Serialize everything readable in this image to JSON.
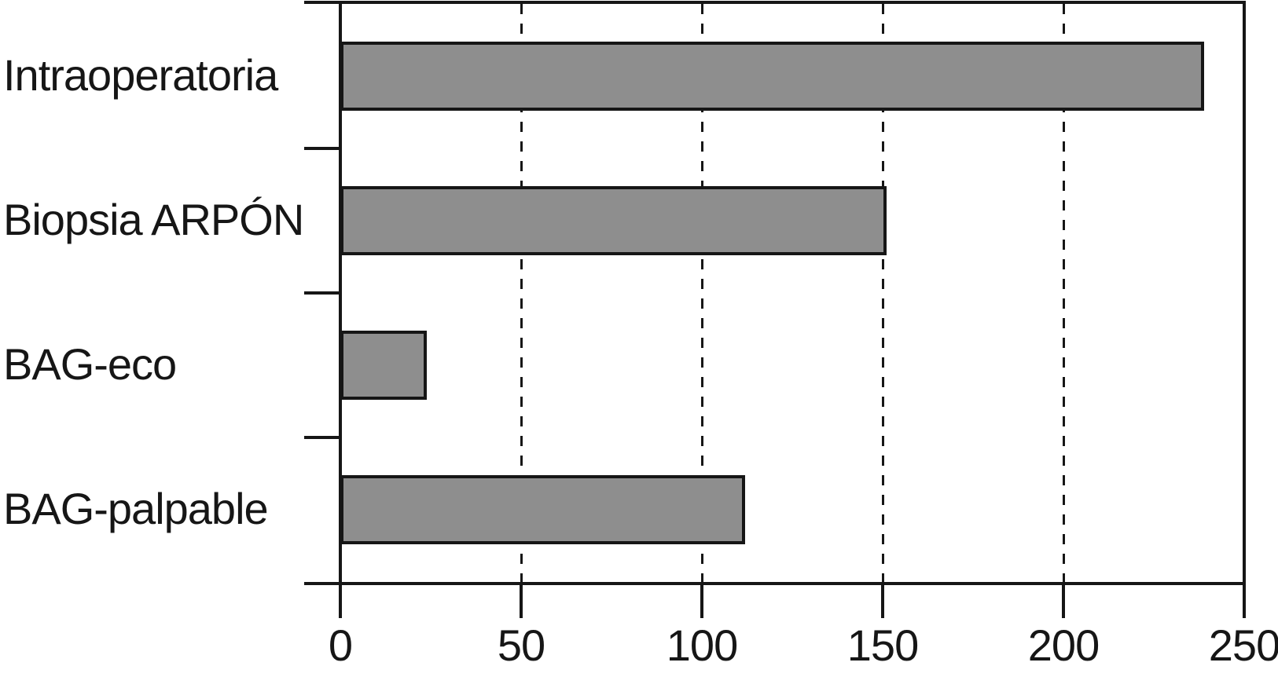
{
  "chart_data": {
    "type": "bar",
    "orientation": "horizontal",
    "title": "",
    "xlabel": "",
    "ylabel": "",
    "categories": [
      "Intraoperatoria",
      "Biopsia ARPÓN",
      "BAG-eco",
      "BAG-palpable"
    ],
    "values": [
      239,
      151,
      24,
      112
    ],
    "xlim": [
      0,
      250
    ],
    "xticks": [
      0,
      50,
      100,
      150,
      200,
      250
    ],
    "xtick_labels": [
      "0",
      "50",
      "100",
      "150",
      "200",
      "250"
    ],
    "grid": {
      "axis": "x",
      "lines_at": [
        50,
        100,
        150,
        200
      ],
      "style": "dashed",
      "behind_bars": true
    },
    "legend": "none",
    "colors": {
      "bar_fill": "#8e8e8e",
      "line": "#161616",
      "text": "#161616",
      "background": "#ffffff"
    }
  }
}
